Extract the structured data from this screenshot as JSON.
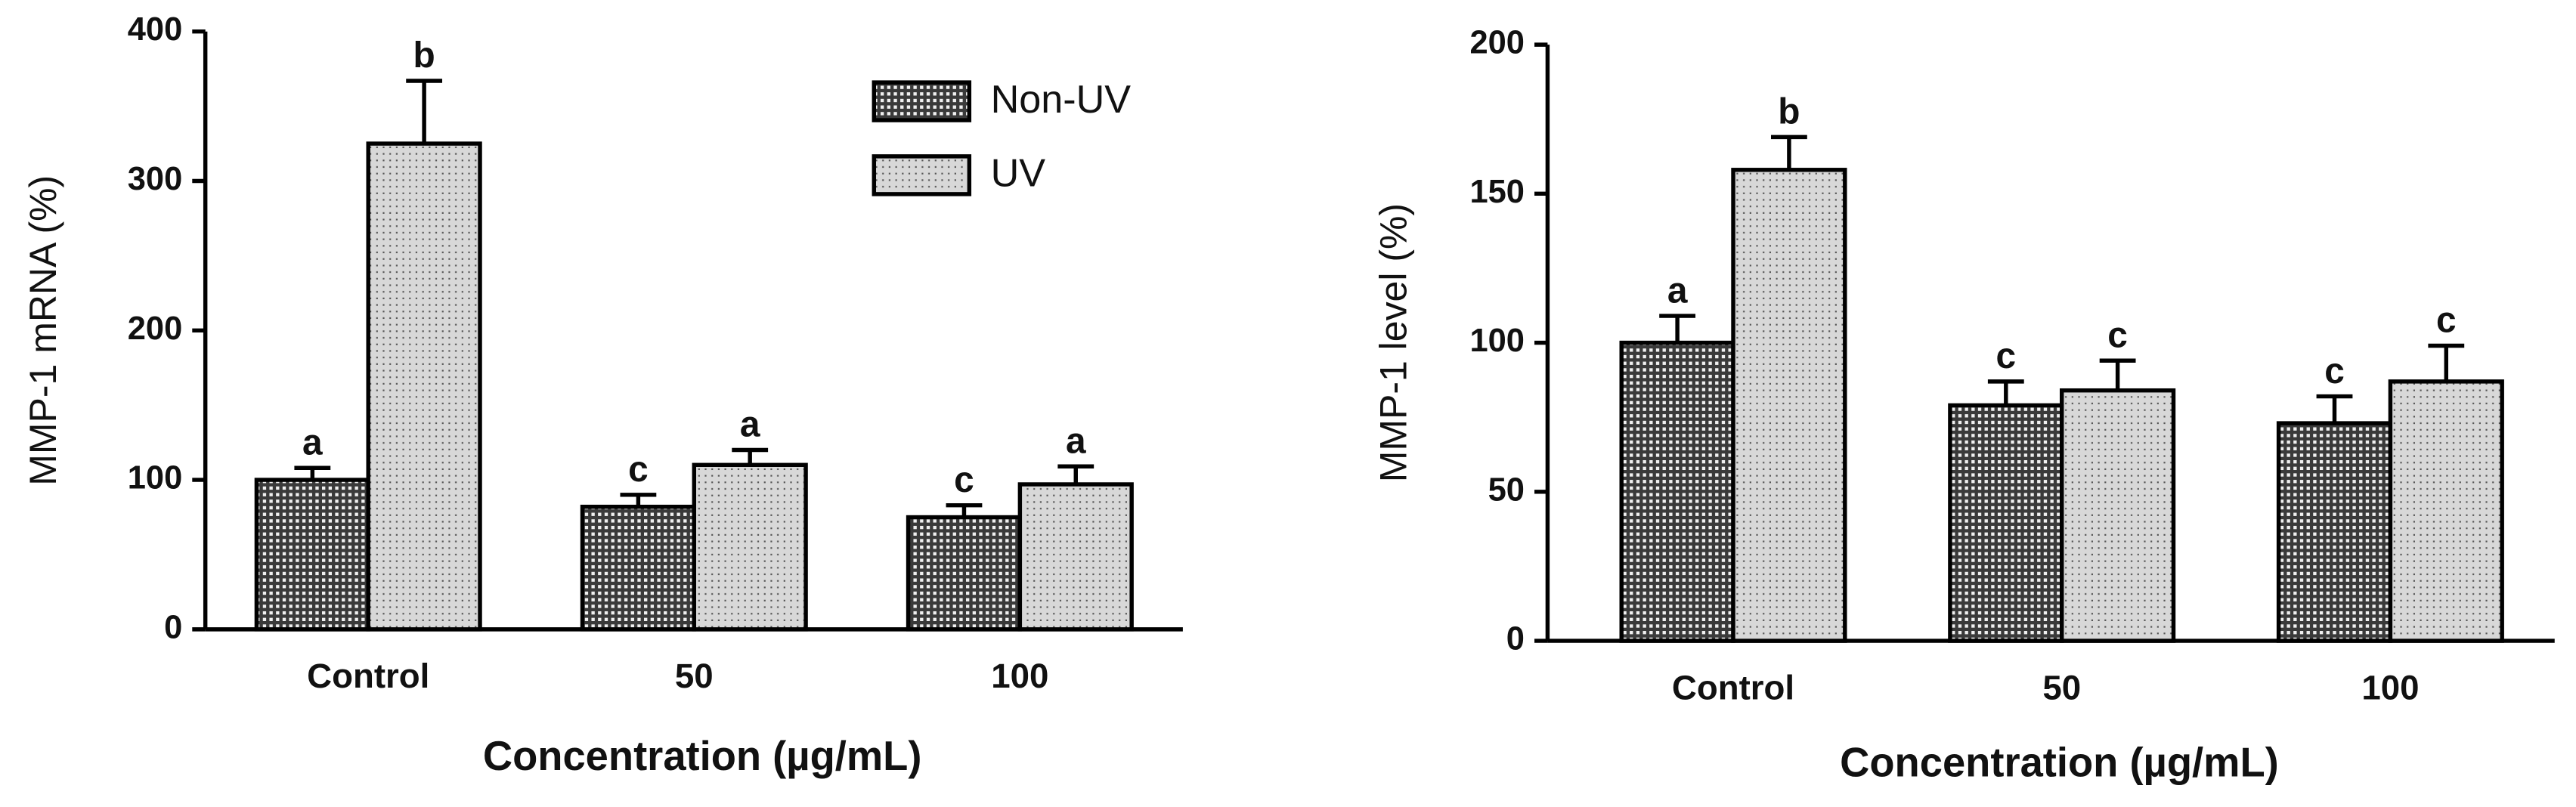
{
  "chart_data": [
    {
      "type": "bar",
      "y_label": "MMP-1 mRNA (%)",
      "x_label": "Concentration (µg/mL)",
      "categories": [
        "Control",
        "50",
        "100"
      ],
      "series": [
        {
          "name": "Non-UV",
          "color": "#3a3a3a",
          "values": [
            100,
            82,
            75
          ],
          "errors": [
            8,
            8,
            8
          ],
          "significance_labels": [
            "a",
            "c",
            "c"
          ]
        },
        {
          "name": "UV",
          "color": "#d8d8d8",
          "values": [
            325,
            110,
            97
          ],
          "errors": [
            42,
            10,
            12
          ],
          "significance_labels": [
            "b",
            "a",
            "a"
          ]
        }
      ],
      "ylim": [
        0,
        400
      ],
      "yticks": [
        0,
        100,
        200,
        300,
        400
      ],
      "legend": "top-right"
    },
    {
      "type": "bar",
      "y_label": "MMP-1 level (%)",
      "x_label": "Concentration (µg/mL)",
      "categories": [
        "Control",
        "50",
        "100"
      ],
      "series": [
        {
          "color": "#3a3a3a",
          "values": [
            100,
            79,
            73
          ],
          "errors": [
            9,
            8,
            9
          ],
          "significance_labels": [
            "a",
            "c",
            "c"
          ]
        },
        {
          "color": "#d8d8d8",
          "values": [
            158,
            84,
            87
          ],
          "errors": [
            11,
            10,
            12
          ],
          "significance_labels": [
            "b",
            "c",
            "c"
          ]
        }
      ],
      "ylim": [
        0,
        200
      ],
      "yticks": [
        0,
        50,
        100,
        150,
        200
      ]
    }
  ]
}
